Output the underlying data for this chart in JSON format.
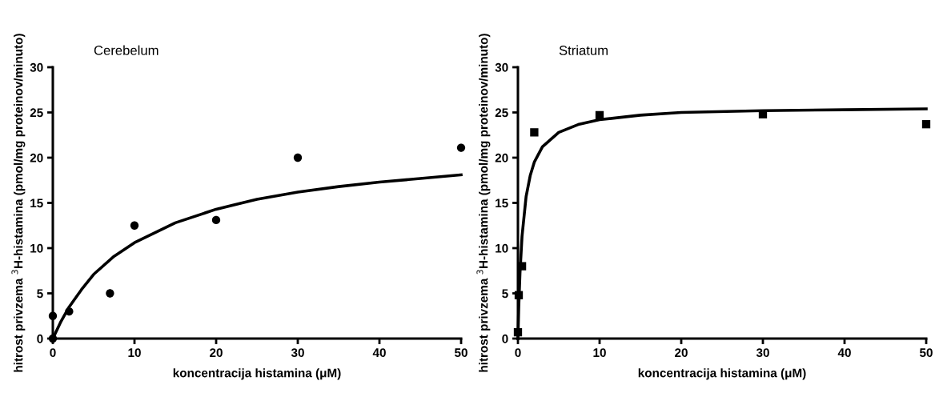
{
  "chart_data": [
    {
      "type": "scatter",
      "title": "Cerebelum",
      "xlabel": "koncentracija histamina (μM)",
      "ylabel": "hitrost privzema $^{3}$H-histamina (pmol/mg proteinov/minuto)",
      "xlim": [
        0,
        50
      ],
      "ylim": [
        0,
        30
      ],
      "xticks": [
        0,
        10,
        20,
        30,
        40,
        50
      ],
      "yticks": [
        0,
        5,
        10,
        15,
        20,
        25,
        30
      ],
      "grid": false,
      "legend": false,
      "series": [
        {
          "marker": "circle",
          "color": "#000000",
          "x": [
            0,
            0,
            2,
            7,
            10,
            20,
            30,
            50
          ],
          "values": [
            0,
            2.5,
            3,
            5,
            12.5,
            13.1,
            20,
            21.1
          ]
        },
        {
          "type": "line",
          "marker": "none",
          "line_style": "solid",
          "color": "#000000",
          "x": [
            0,
            1,
            2,
            3.5,
            5,
            7.5,
            10,
            15,
            20,
            25,
            30,
            35,
            40,
            45,
            50
          ],
          "values": [
            0,
            1.9,
            3.5,
            5.4,
            7.1,
            9.1,
            10.6,
            12.8,
            14.3,
            15.4,
            16.2,
            16.8,
            17.3,
            17.7,
            18.1
          ]
        }
      ]
    },
    {
      "type": "scatter",
      "title": "Striatum",
      "xlabel": "koncentracija histamina (μM)",
      "ylabel": "hitrost privzema $^{3}$H-histamina (pmol/mg proteinov/minuto)",
      "xlim": [
        0,
        50
      ],
      "ylim": [
        0,
        30
      ],
      "xticks": [
        0,
        10,
        20,
        30,
        40,
        50
      ],
      "yticks": [
        0,
        5,
        10,
        15,
        20,
        25,
        30
      ],
      "grid": false,
      "legend": false,
      "series": [
        {
          "marker": "square",
          "color": "#000000",
          "x": [
            0,
            0.1,
            0.5,
            2,
            10,
            30,
            50
          ],
          "values": [
            0.7,
            4.8,
            8,
            22.8,
            24.7,
            24.8,
            23.7
          ]
        },
        {
          "type": "line",
          "marker": "none",
          "line_style": "solid",
          "color": "#000000",
          "x": [
            0,
            0.1,
            0.25,
            0.5,
            1,
            1.5,
            2,
            3,
            5,
            7.5,
            10,
            15,
            20,
            30,
            40,
            50
          ],
          "values": [
            0,
            3.5,
            7.2,
            11.3,
            15.7,
            18.0,
            19.5,
            21.2,
            22.8,
            23.7,
            24.2,
            24.7,
            25.0,
            25.2,
            25.3,
            25.4
          ]
        }
      ]
    }
  ]
}
